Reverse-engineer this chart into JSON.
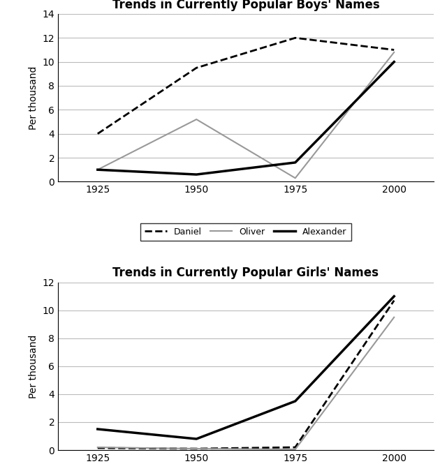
{
  "years": [
    1925,
    1950,
    1975,
    2000
  ],
  "boys": {
    "title": "Trends in Currently Popular Boys' Names",
    "ylabel": "Per thousand",
    "ylim": [
      0,
      14
    ],
    "yticks": [
      0,
      2,
      4,
      6,
      8,
      10,
      12,
      14
    ],
    "xlim": [
      1915,
      2010
    ],
    "series": {
      "Daniel": {
        "values": [
          4,
          9.5,
          12,
          11
        ],
        "style": "dashed",
        "color": "#000000",
        "linewidth": 2.0
      },
      "Oliver": {
        "values": [
          1,
          5.2,
          0.3,
          10.8
        ],
        "style": "solid",
        "color": "#999999",
        "linewidth": 1.5
      },
      "Alexander": {
        "values": [
          1,
          0.6,
          1.6,
          10
        ],
        "style": "solid",
        "color": "#000000",
        "linewidth": 2.5
      }
    }
  },
  "girls": {
    "title": "Trends in Currently Popular Girls' Names",
    "ylabel": "Per thousand",
    "ylim": [
      0,
      12
    ],
    "yticks": [
      0,
      2,
      4,
      6,
      8,
      10,
      12
    ],
    "xlim": [
      1915,
      2010
    ],
    "series": {
      "Sophia": {
        "values": [
          0.15,
          0.1,
          0.2,
          10.7
        ],
        "style": "dashed",
        "color": "#000000",
        "linewidth": 2.0
      },
      "Isabella": {
        "values": [
          0.2,
          0.1,
          0.05,
          9.5
        ],
        "style": "solid",
        "color": "#999999",
        "linewidth": 1.5
      },
      "Emily": {
        "values": [
          1.5,
          0.8,
          3.5,
          11
        ],
        "style": "solid",
        "color": "#000000",
        "linewidth": 2.5
      }
    }
  },
  "background_color": "#ffffff",
  "legend_fontsize": 9,
  "title_fontsize": 12,
  "axis_label_fontsize": 10,
  "tick_fontsize": 10
}
